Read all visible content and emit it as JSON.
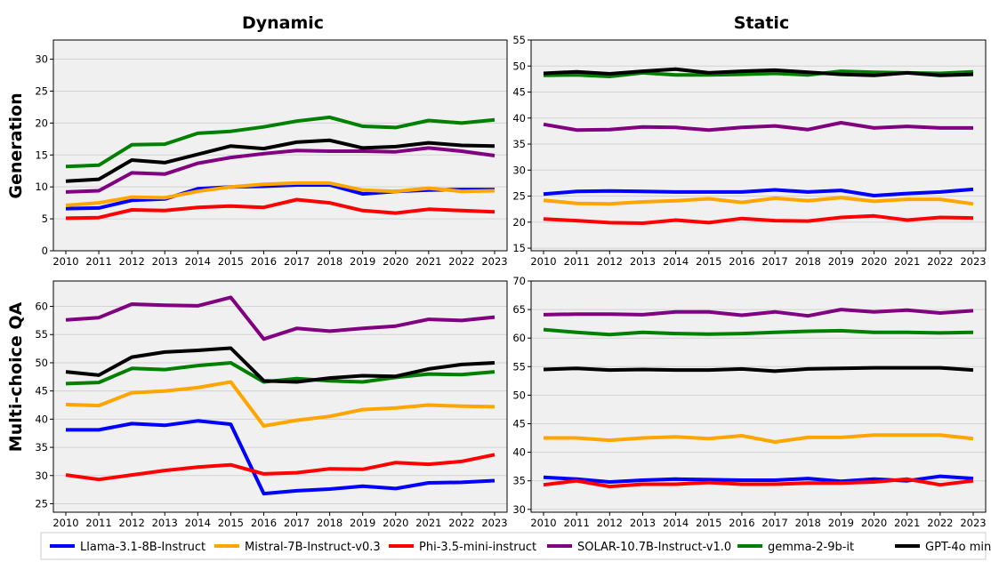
{
  "column_titles": [
    "Dynamic",
    "Static"
  ],
  "row_titles": [
    "Generation",
    "Multi-choice QA"
  ],
  "colors": {
    "Llama-3.1-8B-Instruct": "#0000ff",
    "Mistral-7B-Instruct-v0.3": "#ffa500",
    "Phi-3.5-mini-instruct": "#ff0000",
    "SOLAR-10.7B-Instruct-v1.0": "#800080",
    "gemma-2-9b-it": "#008000",
    "GPT-4o mini": "#000000",
    "panel_background": "#f0f0f0",
    "grid": "#d3d3d3"
  },
  "legend": {
    "placement": "bottom",
    "entries": [
      "Llama-3.1-8B-Instruct",
      "Mistral-7B-Instruct-v0.3",
      "Phi-3.5-mini-instruct",
      "SOLAR-10.7B-Instruct-v1.0",
      "gemma-2-9b-it",
      "GPT-4o mini"
    ]
  },
  "chart_data": [
    {
      "type": "line",
      "column": "Dynamic",
      "row": "Generation",
      "x": [
        2010,
        2011,
        2012,
        2013,
        2014,
        2015,
        2016,
        2017,
        2018,
        2019,
        2020,
        2021,
        2022,
        2023
      ],
      "ylim": [
        0,
        33
      ],
      "yticks": [
        0,
        5,
        10,
        15,
        20,
        25,
        30
      ],
      "grid": true,
      "series": [
        {
          "name": "Llama-3.1-8B-Instruct",
          "values": [
            6.6,
            6.7,
            7.9,
            8.1,
            9.7,
            10.0,
            10.1,
            10.3,
            10.3,
            8.9,
            9.3,
            9.5,
            9.6,
            9.6
          ]
        },
        {
          "name": "Mistral-7B-Instruct-v0.3",
          "values": [
            7.1,
            7.5,
            8.4,
            8.3,
            9.3,
            10.0,
            10.4,
            10.6,
            10.6,
            9.5,
            9.3,
            9.8,
            9.3,
            9.4
          ]
        },
        {
          "name": "Phi-3.5-mini-instruct",
          "values": [
            5.1,
            5.2,
            6.4,
            6.3,
            6.8,
            7.0,
            6.8,
            8.0,
            7.5,
            6.3,
            5.9,
            6.5,
            6.3,
            6.1
          ]
        },
        {
          "name": "SOLAR-10.7B-Instruct-v1.0",
          "values": [
            9.2,
            9.4,
            12.2,
            12.0,
            13.7,
            14.6,
            15.2,
            15.7,
            15.6,
            15.6,
            15.5,
            16.1,
            15.6,
            14.9
          ]
        },
        {
          "name": "gemma-2-9b-it",
          "values": [
            13.2,
            13.4,
            16.6,
            16.7,
            18.4,
            18.7,
            19.4,
            20.3,
            20.9,
            19.5,
            19.3,
            20.4,
            20.0,
            20.5
          ]
        },
        {
          "name": "GPT-4o mini",
          "values": [
            10.9,
            11.2,
            14.2,
            13.8,
            15.1,
            16.4,
            16.0,
            17.0,
            17.3,
            16.1,
            16.3,
            16.9,
            16.5,
            16.4
          ]
        }
      ]
    },
    {
      "type": "line",
      "column": "Static",
      "row": "Generation",
      "x": [
        2010,
        2011,
        2012,
        2013,
        2014,
        2015,
        2016,
        2017,
        2018,
        2019,
        2020,
        2021,
        2022,
        2023
      ],
      "ylim": [
        14.5,
        55
      ],
      "yticks": [
        15,
        20,
        25,
        30,
        35,
        40,
        45,
        50,
        55
      ],
      "grid": true,
      "series": [
        {
          "name": "Llama-3.1-8B-Instruct",
          "values": [
            25.4,
            25.9,
            26.0,
            25.9,
            25.8,
            25.8,
            25.8,
            26.2,
            25.8,
            26.1,
            25.1,
            25.5,
            25.8,
            26.3
          ]
        },
        {
          "name": "Mistral-7B-Instruct-v0.3",
          "values": [
            24.2,
            23.6,
            23.5,
            23.9,
            24.1,
            24.5,
            23.8,
            24.6,
            24.1,
            24.7,
            24.0,
            24.4,
            24.4,
            23.5
          ]
        },
        {
          "name": "Phi-3.5-mini-instruct",
          "values": [
            20.6,
            20.3,
            19.9,
            19.8,
            20.4,
            19.9,
            20.7,
            20.3,
            20.2,
            20.9,
            21.2,
            20.4,
            20.9,
            20.8
          ]
        },
        {
          "name": "SOLAR-10.7B-Instruct-v1.0",
          "values": [
            38.8,
            37.7,
            37.8,
            38.3,
            38.2,
            37.7,
            38.2,
            38.5,
            37.8,
            39.1,
            38.1,
            38.4,
            38.1,
            38.1
          ]
        },
        {
          "name": "gemma-2-9b-it",
          "values": [
            48.2,
            48.3,
            48.0,
            48.7,
            48.3,
            48.3,
            48.4,
            48.6,
            48.3,
            49.0,
            48.8,
            48.7,
            48.6,
            48.9
          ]
        },
        {
          "name": "GPT-4o mini",
          "values": [
            48.6,
            48.9,
            48.5,
            49.0,
            49.4,
            48.7,
            49.0,
            49.2,
            48.8,
            48.4,
            48.2,
            48.7,
            48.2,
            48.4
          ]
        }
      ]
    },
    {
      "type": "line",
      "column": "Dynamic",
      "row": "Multi-choice QA",
      "x": [
        2010,
        2011,
        2012,
        2013,
        2014,
        2015,
        2016,
        2017,
        2018,
        2019,
        2020,
        2021,
        2022,
        2023
      ],
      "ylim": [
        23.5,
        64.5
      ],
      "yticks": [
        25,
        30,
        35,
        40,
        45,
        50,
        55,
        60
      ],
      "grid": true,
      "series": [
        {
          "name": "Llama-3.1-8B-Instruct",
          "values": [
            38.1,
            38.1,
            39.2,
            38.9,
            39.7,
            39.1,
            26.8,
            27.3,
            27.6,
            28.1,
            27.7,
            28.7,
            28.8,
            29.1
          ]
        },
        {
          "name": "Mistral-7B-Instruct-v0.3",
          "values": [
            42.6,
            42.4,
            44.7,
            45.0,
            45.6,
            46.6,
            38.8,
            39.8,
            40.5,
            41.7,
            42.0,
            42.5,
            42.3,
            42.2
          ]
        },
        {
          "name": "Phi-3.5-mini-instruct",
          "values": [
            30.1,
            29.3,
            30.1,
            30.9,
            31.5,
            31.9,
            30.3,
            30.5,
            31.2,
            31.1,
            32.3,
            32.0,
            32.5,
            33.7
          ]
        },
        {
          "name": "SOLAR-10.7B-Instruct-v1.0",
          "values": [
            57.6,
            58.0,
            60.4,
            60.2,
            60.1,
            61.6,
            54.2,
            56.1,
            55.6,
            56.1,
            56.5,
            57.7,
            57.5,
            58.1
          ]
        },
        {
          "name": "gemma-2-9b-it",
          "values": [
            46.3,
            46.5,
            49.0,
            48.8,
            49.5,
            50.0,
            46.6,
            47.2,
            46.8,
            46.6,
            47.4,
            48.0,
            47.9,
            48.4
          ]
        },
        {
          "name": "GPT-4o mini",
          "values": [
            48.4,
            47.8,
            51.0,
            51.9,
            52.2,
            52.6,
            46.8,
            46.6,
            47.3,
            47.7,
            47.6,
            48.9,
            49.7,
            50.0
          ]
        }
      ]
    },
    {
      "type": "line",
      "column": "Static",
      "row": "Multi-choice QA",
      "x": [
        2010,
        2011,
        2012,
        2013,
        2014,
        2015,
        2016,
        2017,
        2018,
        2019,
        2020,
        2021,
        2022,
        2023
      ],
      "ylim": [
        29.5,
        70
      ],
      "yticks": [
        30,
        35,
        40,
        45,
        50,
        55,
        60,
        65,
        70
      ],
      "grid": true,
      "series": [
        {
          "name": "Llama-3.1-8B-Instruct",
          "values": [
            35.6,
            35.3,
            34.8,
            35.1,
            35.3,
            35.2,
            35.1,
            35.1,
            35.4,
            34.9,
            35.3,
            35.0,
            35.8,
            35.4
          ]
        },
        {
          "name": "Mistral-7B-Instruct-v0.3",
          "values": [
            42.5,
            42.5,
            42.1,
            42.5,
            42.7,
            42.4,
            42.9,
            41.8,
            42.6,
            42.6,
            43.0,
            43.0,
            43.0,
            42.4
          ]
        },
        {
          "name": "Phi-3.5-mini-instruct",
          "values": [
            34.3,
            35.0,
            34.0,
            34.4,
            34.4,
            34.7,
            34.4,
            34.4,
            34.6,
            34.6,
            34.8,
            35.3,
            34.3,
            35.0
          ]
        },
        {
          "name": "SOLAR-10.7B-Instruct-v1.0",
          "values": [
            64.1,
            64.2,
            64.2,
            64.1,
            64.6,
            64.6,
            64.0,
            64.6,
            63.9,
            65.0,
            64.6,
            64.9,
            64.4,
            64.8
          ]
        },
        {
          "name": "gemma-2-9b-it",
          "values": [
            61.5,
            61.0,
            60.6,
            61.0,
            60.8,
            60.7,
            60.8,
            61.0,
            61.2,
            61.3,
            61.0,
            61.0,
            60.9,
            61.0
          ]
        },
        {
          "name": "GPT-4o mini",
          "values": [
            54.5,
            54.7,
            54.4,
            54.5,
            54.4,
            54.4,
            54.6,
            54.2,
            54.6,
            54.7,
            54.8,
            54.8,
            54.8,
            54.4
          ]
        }
      ]
    }
  ]
}
